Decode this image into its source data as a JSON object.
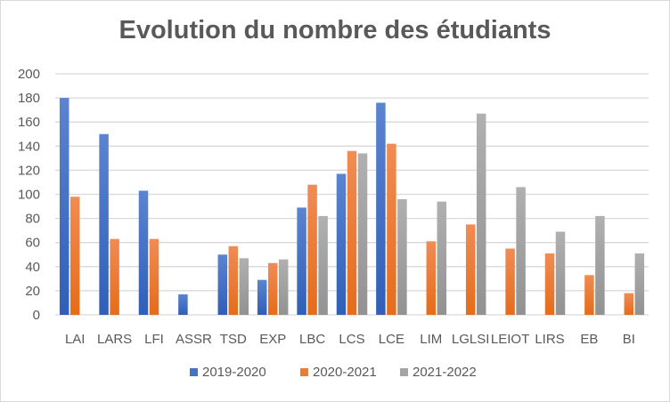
{
  "chart_data": {
    "type": "bar",
    "title": "Evolution du nombre des étudiants",
    "xlabel": "",
    "ylabel": "",
    "ylim": [
      0,
      200
    ],
    "yticks": [
      0,
      20,
      40,
      60,
      80,
      100,
      120,
      140,
      160,
      180,
      200
    ],
    "grid": true,
    "legend_position": "bottom",
    "categories": [
      "LAI",
      "LARS",
      "LFI",
      "ASSR",
      "TSD",
      "EXP",
      "LBC",
      "LCS",
      "LCE",
      "LIM",
      "LGLSI",
      "LEIOT",
      "LIRS",
      "EB",
      "BI"
    ],
    "series": [
      {
        "name": "2019-2020",
        "color": "#4472c4",
        "values": [
          180,
          150,
          103,
          17,
          50,
          29,
          89,
          117,
          176,
          null,
          null,
          null,
          null,
          null,
          null
        ]
      },
      {
        "name": "2020-2021",
        "color": "#ed7d31",
        "values": [
          98,
          63,
          63,
          null,
          57,
          43,
          108,
          136,
          142,
          61,
          75,
          55,
          51,
          33,
          18
        ]
      },
      {
        "name": "2021-2022",
        "color": "#a5a5a5",
        "values": [
          null,
          null,
          null,
          null,
          47,
          46,
          82,
          134,
          96,
          94,
          167,
          106,
          69,
          82,
          51
        ]
      }
    ]
  }
}
